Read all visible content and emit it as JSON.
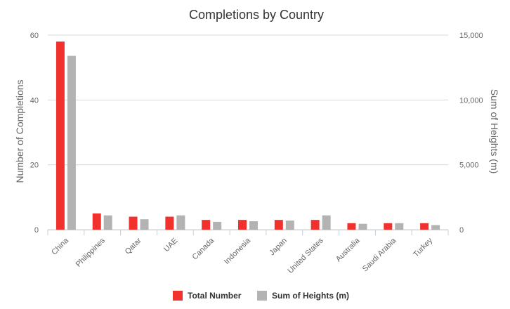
{
  "chart_data": {
    "type": "bar",
    "title": "Completions by Country",
    "categories": [
      "China",
      "Philippines",
      "Qatar",
      "UAE",
      "Canada",
      "Indonesia",
      "Japan",
      "United States",
      "Australia",
      "Saudi Arabia",
      "Turkey"
    ],
    "series": [
      {
        "name": "Total Number",
        "axis": "left",
        "color": "#f0312d",
        "values": [
          58,
          5,
          4,
          4,
          3,
          3,
          3,
          3,
          2,
          2,
          2
        ]
      },
      {
        "name": "Sum of Heights (m)",
        "axis": "right",
        "color": "#b3b3b3",
        "values": [
          13400,
          1100,
          800,
          1100,
          600,
          650,
          700,
          1100,
          450,
          500,
          350
        ]
      }
    ],
    "ylabel_left": "Number of Completions",
    "ylabel_right": "Sum of Heights (m)",
    "ylim_left": [
      0,
      60
    ],
    "ylim_right": [
      0,
      15000
    ],
    "yticks_left": [
      "0",
      "20",
      "40",
      "60"
    ],
    "yticks_right": [
      "0",
      "5,000",
      "10,000",
      "15,000"
    ],
    "grid": true,
    "legend_position": "bottom"
  }
}
